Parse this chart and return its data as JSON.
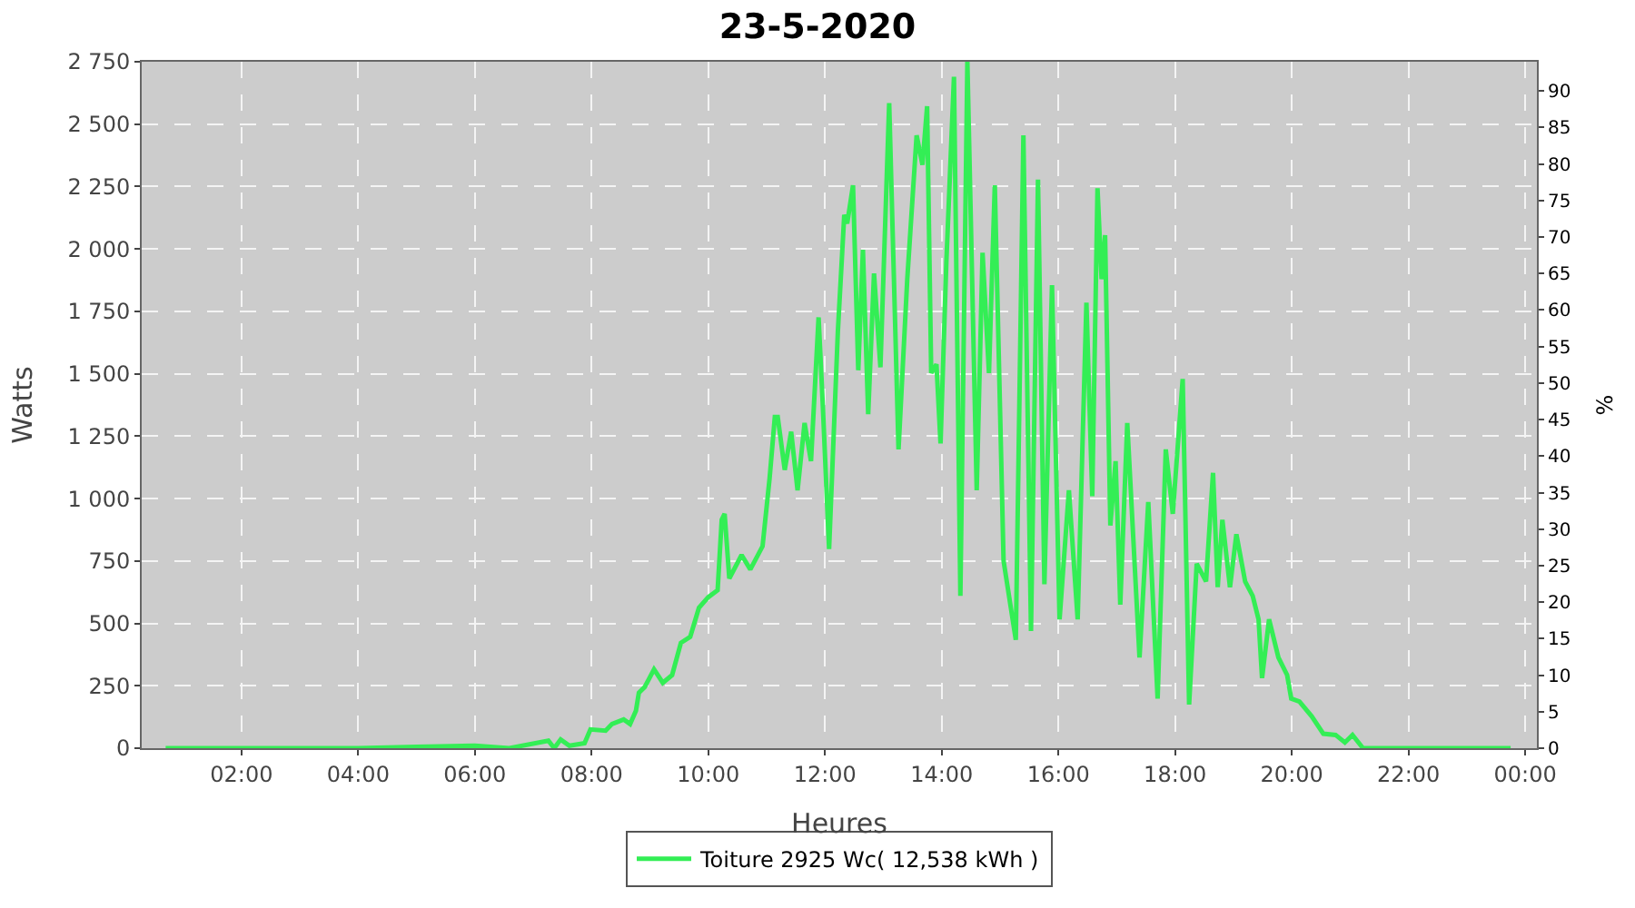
{
  "chart_data": {
    "type": "line",
    "title": "23-5-2020",
    "xlabel": "Heures",
    "ylabel": "Watts",
    "y2label": "%",
    "x": [
      0.7,
      2,
      4,
      5,
      6,
      6.59,
      7.26,
      7.36,
      7.47,
      7.62,
      7.88,
      7.98,
      8.24,
      8.35,
      8.55,
      8.66,
      8.76,
      8.81,
      8.91,
      9.07,
      9.22,
      9.38,
      9.53,
      9.69,
      9.84,
      10.0,
      10.16,
      10.23,
      10.28,
      10.36,
      10.57,
      10.72,
      10.93,
      11.05,
      11.14,
      11.19,
      11.31,
      11.42,
      11.53,
      11.65,
      11.76,
      11.89,
      11.96,
      12.07,
      12.22,
      12.33,
      12.38,
      12.48,
      12.57,
      12.65,
      12.74,
      12.84,
      12.95,
      13.1,
      13.26,
      13.41,
      13.57,
      13.67,
      13.75,
      13.82,
      13.91,
      13.98,
      14.08,
      14.21,
      14.32,
      14.44,
      14.6,
      14.7,
      14.81,
      14.91,
      15.06,
      15.27,
      15.4,
      15.53,
      15.65,
      15.76,
      15.89,
      16.02,
      16.18,
      16.33,
      16.48,
      16.58,
      16.67,
      16.74,
      16.8,
      16.89,
      16.98,
      17.06,
      17.18,
      17.39,
      17.54,
      17.7,
      17.84,
      17.96,
      18.13,
      18.24,
      18.37,
      18.53,
      18.65,
      18.73,
      18.81,
      18.94,
      19.05,
      19.2,
      19.33,
      19.43,
      19.49,
      19.61,
      19.77,
      19.92,
      19.99,
      20.13,
      20.34,
      20.54,
      20.75,
      20.91,
      21.04,
      21.22,
      22.5,
      23.75
    ],
    "series": [
      {
        "name": "Toiture 2925 Wc( 12,538 kWh )",
        "color": "#33ee55",
        "values": [
          0,
          0,
          0,
          5,
          10,
          0,
          30,
          0,
          35,
          10,
          20,
          75,
          70,
          97,
          115,
          97,
          150,
          222,
          245,
          316,
          262,
          293,
          422,
          446,
          563,
          605,
          633,
          915,
          939,
          680,
          774,
          716,
          809,
          1080,
          1327,
          1327,
          1115,
          1268,
          1033,
          1303,
          1150,
          1726,
          1385,
          798,
          1667,
          2137,
          2102,
          2255,
          1514,
          1997,
          1338,
          1902,
          1526,
          2584,
          1197,
          1880,
          2455,
          2337,
          2572,
          1503,
          1538,
          1221,
          1949,
          2690,
          610,
          2750,
          1033,
          1985,
          1503,
          2255,
          751,
          434,
          2455,
          469,
          2278,
          657,
          1855,
          516,
          1033,
          516,
          1785,
          1010,
          2243,
          1879,
          2055,
          892,
          1150,
          575,
          1303,
          363,
          986,
          199,
          1197,
          939,
          1479,
          175,
          739,
          668,
          1103,
          645,
          915,
          645,
          857,
          668,
          610,
          516,
          281,
          516,
          363,
          293,
          199,
          187,
          128,
          58,
          53,
          23,
          53,
          0,
          0,
          0
        ]
      }
    ],
    "xlim": [
      0.29,
      24.2
    ],
    "xticks": [
      {
        "value": 2,
        "label": "02:00"
      },
      {
        "value": 4,
        "label": "04:00"
      },
      {
        "value": 6,
        "label": "06:00"
      },
      {
        "value": 8,
        "label": "08:00"
      },
      {
        "value": 10,
        "label": "10:00"
      },
      {
        "value": 12,
        "label": "12:00"
      },
      {
        "value": 14,
        "label": "14:00"
      },
      {
        "value": 16,
        "label": "16:00"
      },
      {
        "value": 18,
        "label": "18:00"
      },
      {
        "value": 20,
        "label": "20:00"
      },
      {
        "value": 22,
        "label": "22:00"
      },
      {
        "value": 24,
        "label": "00:00"
      }
    ],
    "ylim": [
      0,
      2750
    ],
    "yticks": [
      0,
      250,
      500,
      750,
      {
        "value": 1000,
        "label": "1 000"
      },
      {
        "value": 1250,
        "label": "1 250"
      },
      {
        "value": 1500,
        "label": "1 500"
      },
      {
        "value": 1750,
        "label": "1 750"
      },
      {
        "value": 2000,
        "label": "2 000"
      },
      {
        "value": 2250,
        "label": "2 250"
      },
      {
        "value": 2500,
        "label": "2 500"
      },
      {
        "value": 2750,
        "label": "2 750"
      }
    ],
    "y2lim": [
      0,
      94
    ],
    "y2ticks": [
      0,
      5,
      10,
      15,
      20,
      25,
      30,
      35,
      40,
      45,
      50,
      55,
      60,
      65,
      70,
      75,
      80,
      85,
      90
    ],
    "grid": true,
    "legend": "bottom",
    "marker": "none",
    "line_style": "solid"
  }
}
